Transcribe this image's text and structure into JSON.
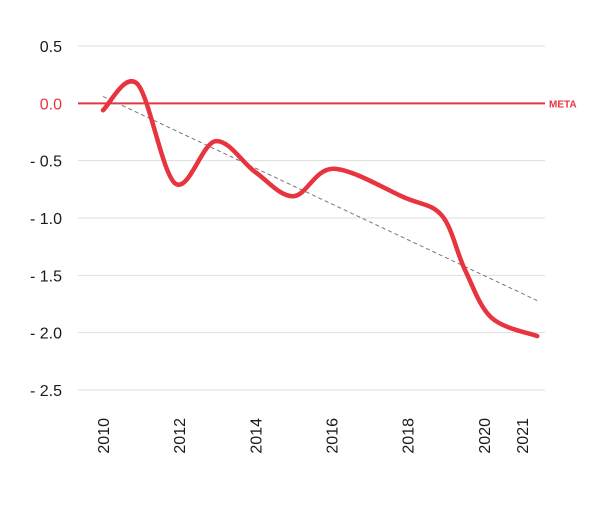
{
  "chart_data": {
    "type": "line",
    "ylim": [
      -2.5,
      0.5
    ],
    "yticks": [
      0.5,
      0.0,
      -0.5,
      -1.0,
      -1.5,
      -2.0,
      -2.5
    ],
    "ytick_labels": [
      "0.5",
      "0.0",
      "- 0.5",
      "- 1.0",
      "- 1.5",
      "- 2.0",
      "- 2.5"
    ],
    "xlim": [
      2010,
      2021
    ],
    "xticks": [
      2010,
      2012,
      2014,
      2016,
      2018,
      2020,
      2021
    ],
    "xtick_labels": [
      "2010",
      "2012",
      "2014",
      "2016",
      "2018",
      "2020",
      "2021"
    ],
    "grid": true,
    "series": [
      {
        "color": "#e8343f",
        "x": [
          2010.0,
          2010.9,
          2011.9,
          2012.95,
          2014.0,
          2015.0,
          2016.05,
          2017.9,
          2018.9,
          2019.5,
          2020.2,
          2021.4
        ],
        "y": [
          -0.06,
          0.17,
          -0.7,
          -0.33,
          -0.6,
          -0.81,
          -0.57,
          -0.82,
          -0.98,
          -1.45,
          -1.87,
          -2.03
        ]
      }
    ],
    "trendline": {
      "x": [
        2010.0,
        2021.4
      ],
      "y": [
        0.06,
        -1.72
      ],
      "color": "#777777"
    },
    "reference_line": {
      "y": 0.0,
      "label": "META",
      "color": "#e8343f"
    }
  }
}
